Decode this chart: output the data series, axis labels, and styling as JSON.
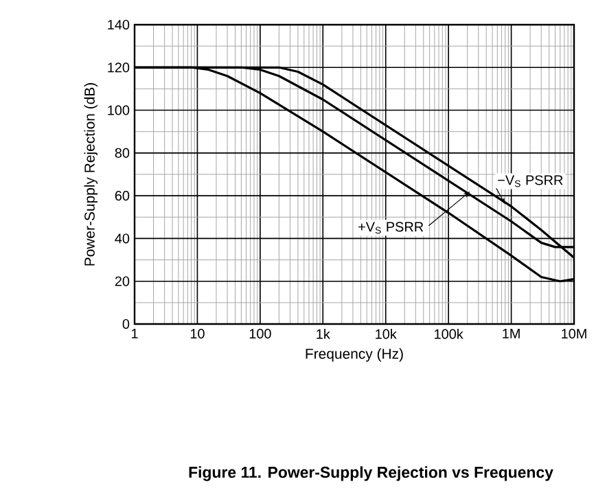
{
  "chart_data": {
    "type": "line",
    "title": "Figure 11. Power-Supply Rejection vs Frequency",
    "xlabel": "Frequency (Hz)",
    "ylabel": "Power-Supply Rejection (dB)",
    "log": "x",
    "grid": true,
    "xlim": [
      1,
      10000000
    ],
    "ylim": [
      0,
      140
    ],
    "xticks": [
      1,
      10,
      100,
      {
        "value": 1000,
        "label": "1k"
      },
      {
        "value": 10000,
        "label": "10k"
      },
      {
        "value": 100000,
        "label": "100k"
      },
      {
        "value": 1000000,
        "label": "1M"
      },
      {
        "value": 10000000,
        "label": "10M"
      }
    ],
    "yticks": [
      0,
      20,
      40,
      60,
      80,
      100,
      120,
      140
    ],
    "annotations": [
      {
        "text": "+V$_{S}$ PSRR",
        "x": 220000,
        "y": 62
      }
    ],
    "series": [
      {
        "name": "−V$_{S}$ PSRR",
        "color": "#000000",
        "x": [
          1,
          100,
          200,
          400,
          1000,
          10000,
          100000,
          1000000,
          3000000,
          10000000
        ],
        "values": [
          120,
          120,
          120,
          118,
          112,
          93,
          74,
          55,
          44,
          31
        ]
      },
      {
        "color": "#000000",
        "x": [
          1,
          50,
          100,
          200,
          1000,
          10000,
          100000,
          1000000,
          3000000,
          5000000,
          10000000
        ],
        "values": [
          120,
          120,
          119,
          116,
          105,
          86,
          67,
          48,
          38,
          36,
          36
        ]
      },
      {
        "color": "#000000",
        "x": [
          1,
          8,
          15,
          30,
          100,
          1000,
          10000,
          100000,
          1000000,
          3000000,
          6000000,
          10000000
        ],
        "values": [
          120,
          120,
          119,
          116,
          108,
          90,
          71,
          52,
          32,
          22,
          20,
          21
        ]
      }
    ]
  }
}
